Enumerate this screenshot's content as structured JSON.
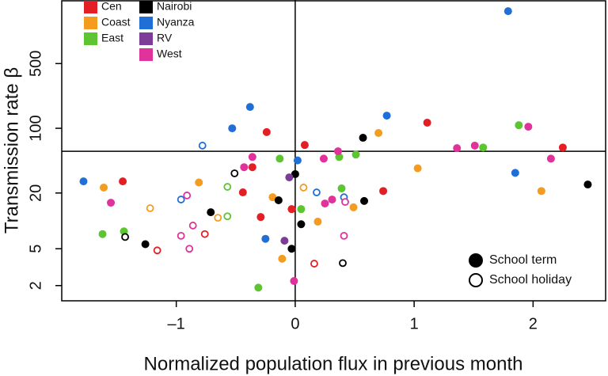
{
  "chart_data": {
    "type": "scatter",
    "x_label": "Normalized population flux in previous month",
    "y_label": "Transmission rate β",
    "xlim": [
      -1.963,
      2.61
    ],
    "ylim": [
      1.37,
      2430
    ],
    "log_y": true,
    "xticks": [
      {
        "value": -1,
        "label": "–1"
      },
      0,
      1,
      2
    ],
    "yticks": [
      2,
      5,
      20,
      100,
      500
    ],
    "hline": 56.5,
    "vline": 0,
    "fill_legend": [
      "School term",
      "School holiday"
    ],
    "series": [
      {
        "name": "Cen",
        "color": "#e31e24",
        "term": {
          "x": [
            -0.24,
            0.08,
            1.11,
            2.25,
            -1.45,
            -0.44,
            0.74,
            -0.03,
            -0.29,
            -0.36
          ],
          "y": [
            91,
            66,
            115,
            62,
            26.7,
            20.3,
            21,
            13.4,
            11,
            38
          ]
        },
        "holiday": {
          "x": [
            -0.76,
            0.16,
            -1.16
          ],
          "y": [
            7.2,
            3.45,
            4.8
          ]
        }
      },
      {
        "name": "Coast",
        "color": "#f39c1f",
        "term": {
          "x": [
            -1.61,
            -0.81,
            -0.19,
            0.7,
            1.03,
            2.07,
            0.19,
            0.49,
            -0.11
          ],
          "y": [
            22.9,
            26,
            18,
            89,
            37,
            21,
            9.8,
            14,
            3.9
          ]
        },
        "holiday": {
          "x": [
            -1.22,
            -0.65,
            0.07
          ],
          "y": [
            13.7,
            10.8,
            22.9
          ]
        }
      },
      {
        "name": "East",
        "color": "#5cc531",
        "term": {
          "x": [
            -1.62,
            -1.44,
            -0.13,
            0.37,
            0.51,
            0.39,
            0.05,
            -0.31,
            1.58,
            1.88
          ],
          "y": [
            7.2,
            7.7,
            47,
            49,
            52,
            22.4,
            13.4,
            1.9,
            62,
            108
          ]
        },
        "holiday": {
          "x": [
            -0.57,
            -0.57
          ],
          "y": [
            11.2,
            23.3
          ]
        }
      },
      {
        "name": "Nairobi",
        "color": "#000000",
        "term": {
          "x": [
            0.57,
            0,
            0.58,
            -0.14,
            -0.71,
            0.05,
            -1.26,
            -0.03,
            2.46
          ],
          "y": [
            79,
            32,
            16.4,
            16.7,
            12.4,
            9.2,
            5.6,
            5.0,
            24.7
          ]
        },
        "holiday": {
          "x": [
            -0.51,
            -1.43,
            0.4
          ],
          "y": [
            32.6,
            6.7,
            3.5
          ]
        }
      },
      {
        "name": "Nyanza",
        "color": "#1f6fd6",
        "term": {
          "x": [
            1.79,
            -0.38,
            -0.53,
            0.77,
            0.02,
            -1.78,
            1.85,
            -0.25
          ],
          "y": [
            1840,
            170,
            100,
            137,
            45,
            26.7,
            33,
            6.4
          ]
        },
        "holiday": {
          "x": [
            -0.78,
            0.18,
            -0.96,
            0.41
          ],
          "y": [
            65,
            20.3,
            17,
            18
          ]
        }
      },
      {
        "name": "RV",
        "color": "#7d3c98",
        "term": {
          "x": [
            -0.09,
            -0.05
          ],
          "y": [
            6.1,
            29.5
          ]
        },
        "holiday": {
          "x": [],
          "y": []
        }
      },
      {
        "name": "West",
        "color": "#e0329a",
        "term": {
          "x": [
            -0.36,
            -0.43,
            0.36,
            0.24,
            1.36,
            1.51,
            1.96,
            2.15,
            -1.55,
            0.25,
            0.31,
            -0.01
          ],
          "y": [
            49,
            38,
            56.5,
            47,
            61,
            65,
            104,
            47,
            15.7,
            15.4,
            17,
            2.24
          ]
        },
        "holiday": {
          "x": [
            -0.91,
            -0.86,
            -0.96,
            -0.89,
            0.41,
            0.42
          ],
          "y": [
            18.8,
            8.9,
            6.9,
            5.0,
            6.9,
            16
          ]
        }
      }
    ]
  }
}
